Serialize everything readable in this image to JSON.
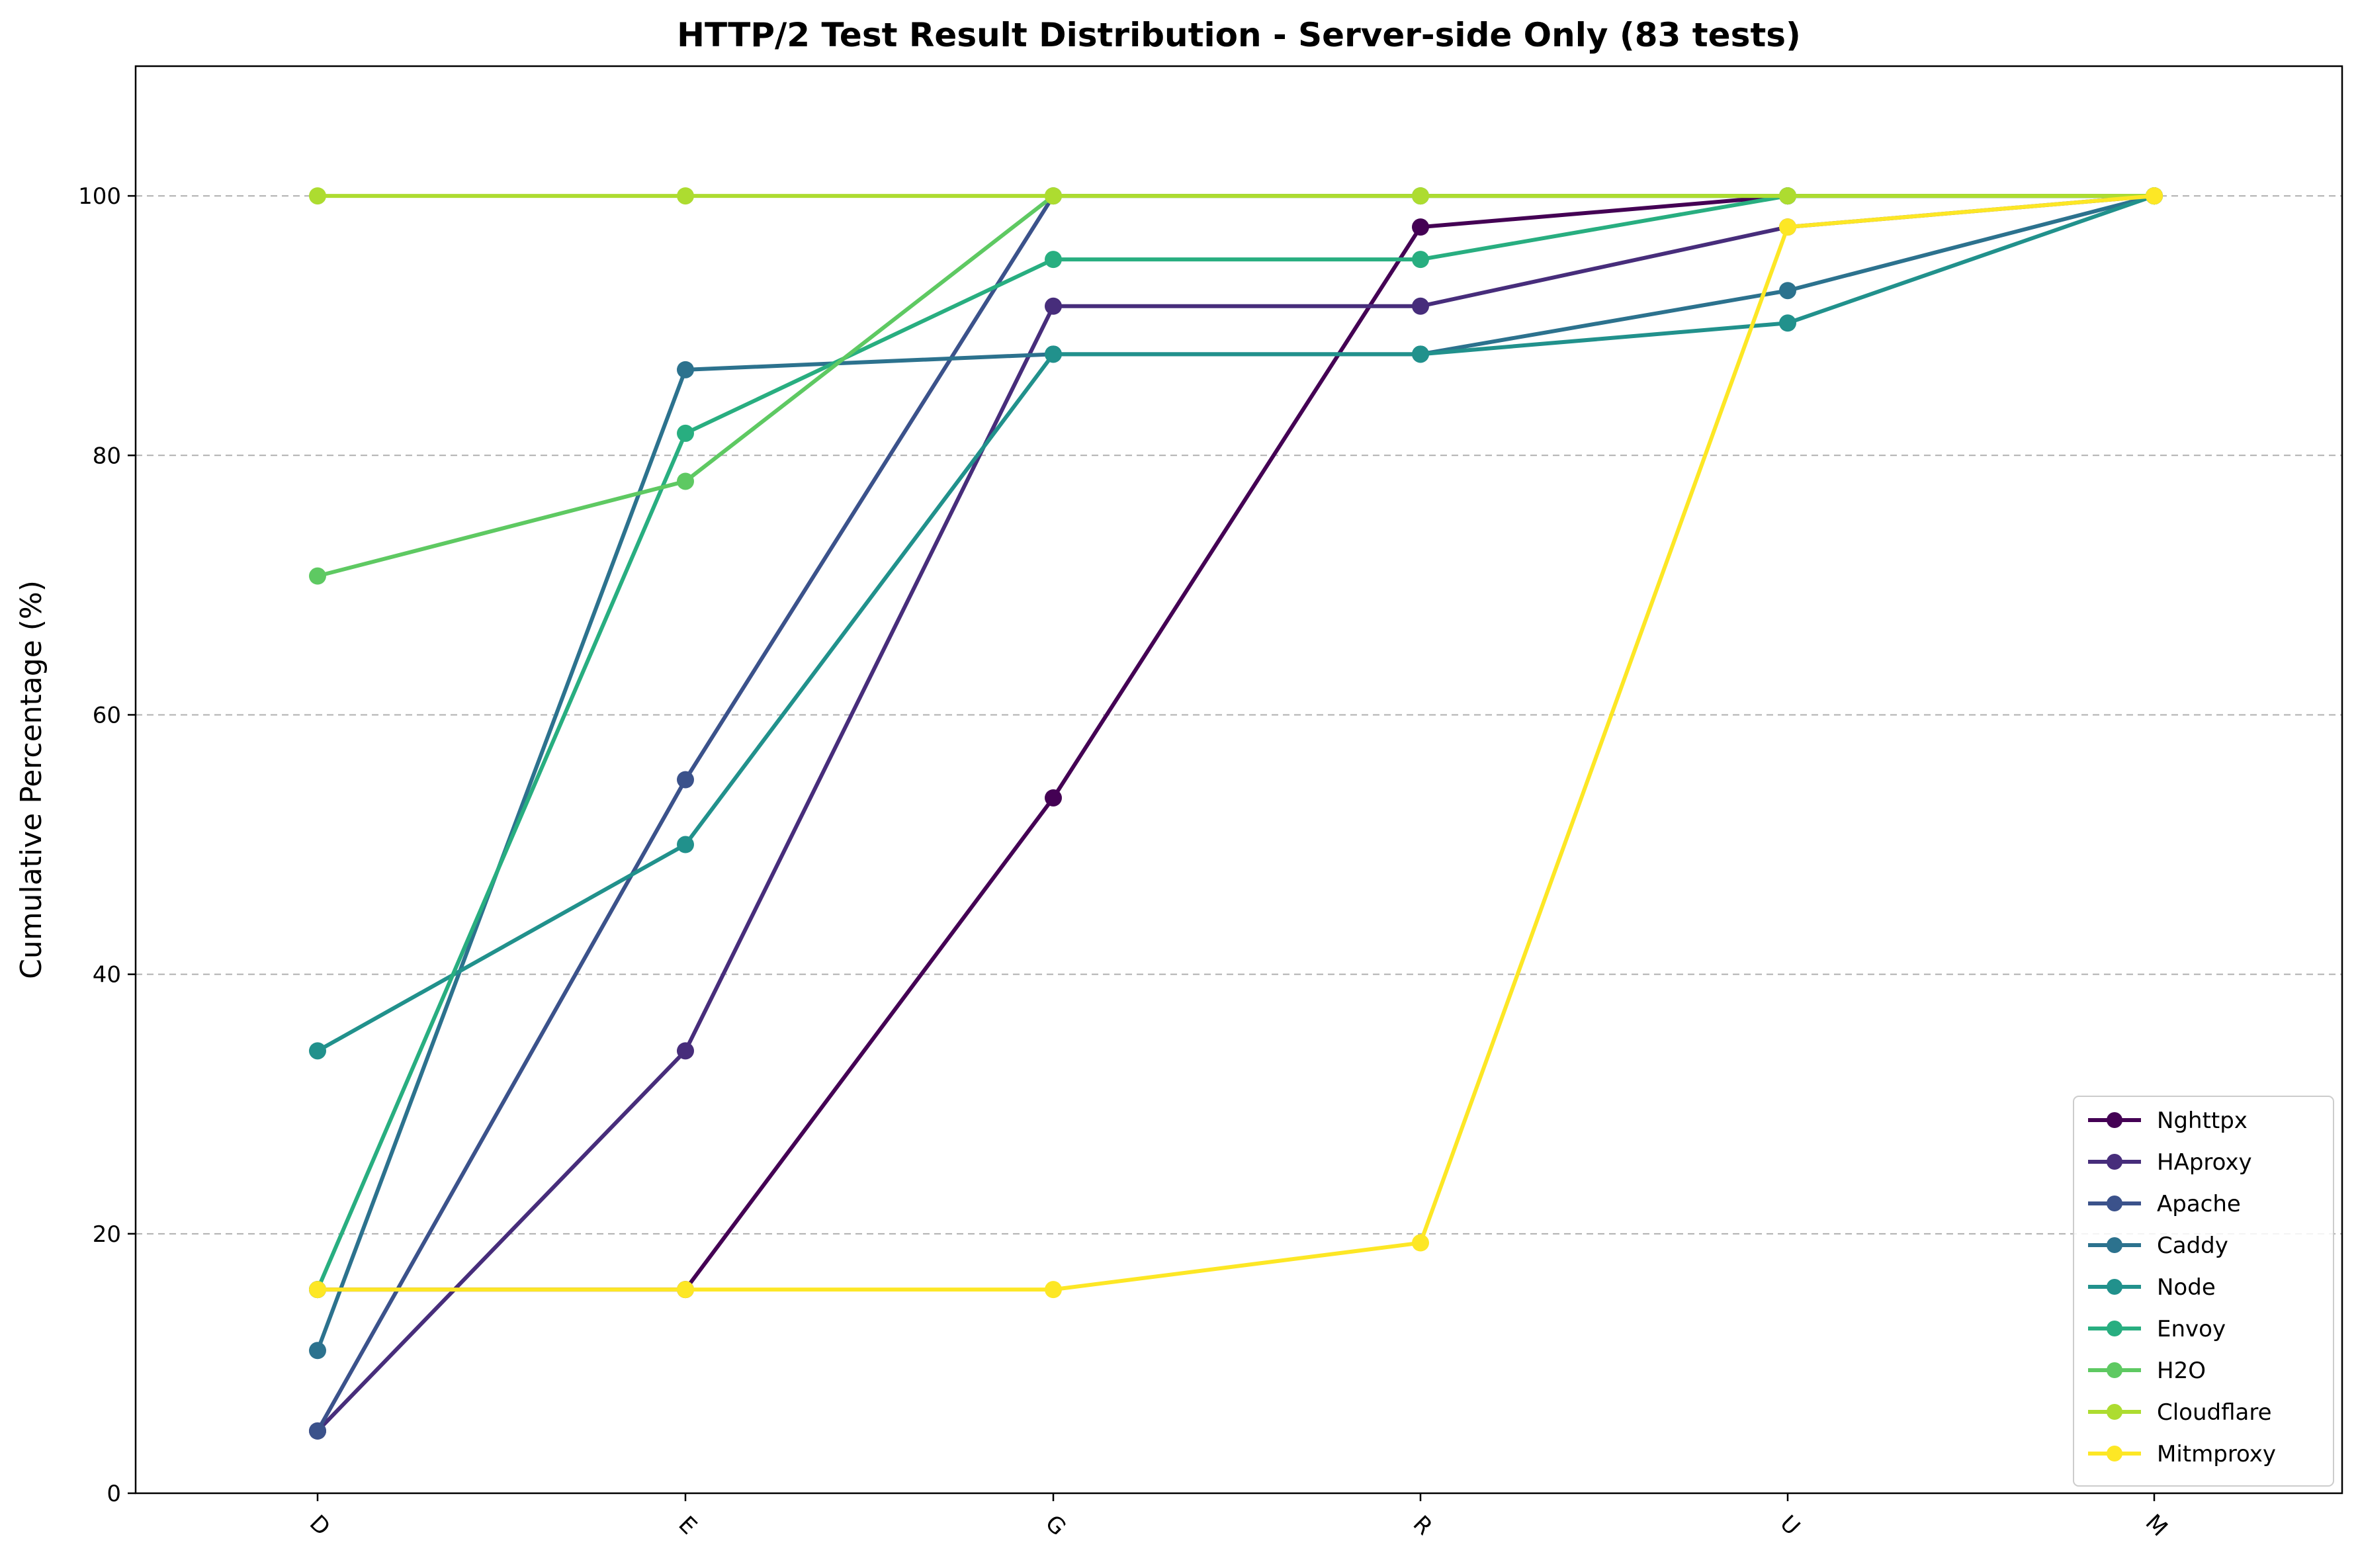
{
  "chart_data": {
    "type": "line",
    "title": "HTTP/2 Test Result Distribution - Server-side Only (83 tests)",
    "xlabel": "",
    "ylabel": "Cumulative Percentage (%)",
    "categories": [
      "D",
      "E",
      "G",
      "R",
      "U",
      "M"
    ],
    "ylim": [
      0,
      110
    ],
    "yticks": [
      0,
      20,
      40,
      60,
      80,
      100
    ],
    "grid": "y-dashed",
    "legend_position": "lower-right",
    "series": [
      {
        "name": "Nghttpx",
        "color": "#440154",
        "values": [
          15.7,
          15.7,
          53.6,
          97.6,
          100,
          100
        ]
      },
      {
        "name": "HAproxy",
        "color": "#472d7b",
        "values": [
          4.8,
          34.1,
          91.5,
          91.5,
          97.6,
          100
        ]
      },
      {
        "name": "Apache",
        "color": "#3b528b",
        "values": [
          4.8,
          55.0,
          100,
          100,
          100,
          100
        ]
      },
      {
        "name": "Caddy",
        "color": "#2c728e",
        "values": [
          11.0,
          86.6,
          87.8,
          87.8,
          92.7,
          100
        ]
      },
      {
        "name": "Node",
        "color": "#21918c",
        "values": [
          34.1,
          50.0,
          87.8,
          87.8,
          90.2,
          100
        ]
      },
      {
        "name": "Envoy",
        "color": "#28ae80",
        "values": [
          15.7,
          81.7,
          95.1,
          95.1,
          100,
          100
        ]
      },
      {
        "name": "H2O",
        "color": "#5ec962",
        "values": [
          70.7,
          78.0,
          100,
          100,
          100,
          100
        ]
      },
      {
        "name": "Cloudflare",
        "color": "#addc30",
        "values": [
          100,
          100,
          100,
          100,
          100,
          100
        ]
      },
      {
        "name": "Mitmproxy",
        "color": "#fde725",
        "values": [
          15.7,
          15.7,
          15.7,
          19.3,
          97.6,
          100
        ]
      }
    ]
  }
}
